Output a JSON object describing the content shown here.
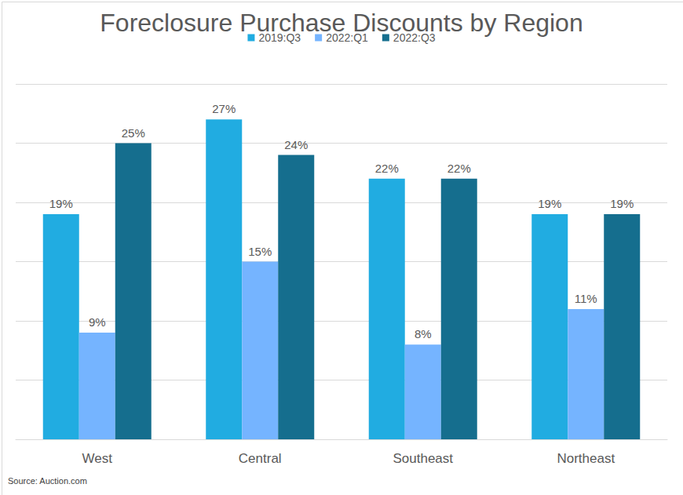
{
  "chart_data": {
    "type": "bar",
    "title": "Foreclosure Purchase Discounts by Region",
    "source": "Source: Auction.com",
    "categories": [
      "West",
      "Central",
      "Southeast",
      "Northeast"
    ],
    "series": [
      {
        "name": "2019:Q3",
        "color": "#21ace1",
        "values": [
          19,
          27,
          22,
          19
        ],
        "value_labels": [
          "19%",
          "27%",
          "22%",
          "19%"
        ]
      },
      {
        "name": "2022:Q1",
        "color": "#75b4ff",
        "values": [
          9,
          15,
          8,
          11
        ],
        "value_labels": [
          "9%",
          "15%",
          "8%",
          "11%"
        ]
      },
      {
        "name": "2022:Q3",
        "color": "#156e8e",
        "values": [
          25,
          24,
          22,
          19
        ],
        "value_labels": [
          "25%",
          "24%",
          "22%",
          "19%"
        ]
      }
    ],
    "ylim": [
      0,
      30
    ],
    "yticks": [
      0,
      5,
      10,
      15,
      20,
      25,
      30
    ],
    "grid": true,
    "legend": "top",
    "data_labels": true,
    "tick_labels": "x"
  }
}
